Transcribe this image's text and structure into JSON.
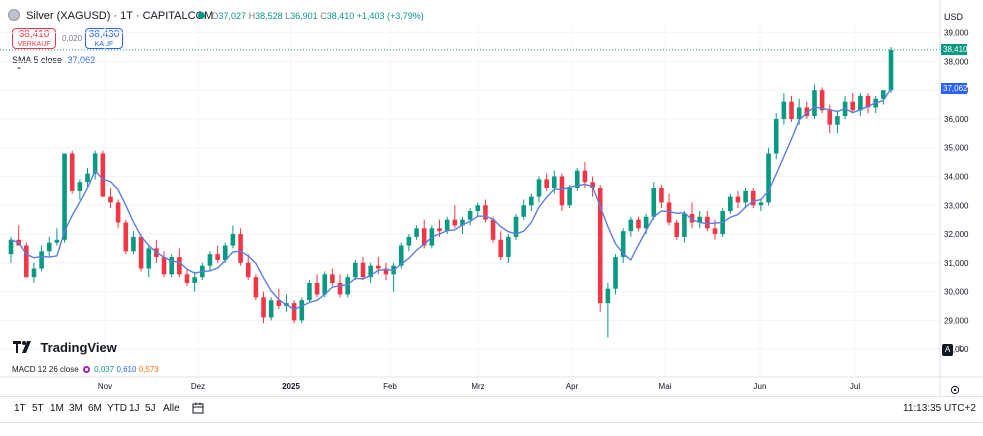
{
  "header": {
    "title": "Silver (XAGUSD) · 1T · CAPITALCOM",
    "ohlc": {
      "o_label": "O",
      "o": "37,027",
      "h_label": "H",
      "h": "38,528",
      "l_label": "L",
      "l": "36,901",
      "c_label": "C",
      "c": "38,410",
      "change": "+1,403 (+3,79%)"
    },
    "sell_price": "38,410",
    "sell_label": "VERKAUF",
    "spread": "0,020",
    "buy_price": "38,430",
    "buy_label": "KAUF",
    "currency": "USD"
  },
  "sma": {
    "label": "SMA 5 close",
    "value": "37,062"
  },
  "macd": {
    "label": "MACD 12 26 close",
    "v1": "0,037",
    "v2": "0,610",
    "v3": "0,573"
  },
  "logo_text": "TradingView",
  "timeframes": [
    "1T",
    "5T",
    "1M",
    "3M",
    "6M",
    "YTD",
    "1J",
    "5J",
    "Alle"
  ],
  "clock": "11:13:35 UTC+2",
  "price_tags": {
    "last": "38,410",
    "sma": "37,062"
  },
  "colors": {
    "up": "#089981",
    "down": "#f23645",
    "sma": "#5b7fe0",
    "accent": "#2962ff"
  },
  "chart_data": {
    "type": "candlestick",
    "y_axis_ticks": [
      "39,000",
      "38,000",
      "37,000",
      "36,000",
      "35,000",
      "34,000",
      "33,000",
      "32,000",
      "31,000",
      "30,000",
      "29,000",
      "28,000"
    ],
    "x_axis_labels": [
      "Nov",
      "Dez",
      "2025",
      "Feb",
      "Mrz",
      "Apr",
      "Mai",
      "Jun",
      "Jul"
    ],
    "ylim": [
      27.9,
      39.3
    ],
    "series": [
      {
        "name": "SMA 5 close"
      }
    ],
    "ohlc": [
      [
        31.3,
        31.9,
        31.0,
        31.8
      ],
      [
        31.8,
        32.3,
        31.6,
        31.6
      ],
      [
        31.6,
        31.7,
        30.5,
        30.5
      ],
      [
        30.5,
        31.0,
        30.3,
        30.8
      ],
      [
        30.8,
        31.6,
        30.7,
        31.4
      ],
      [
        31.4,
        31.9,
        31.2,
        31.7
      ],
      [
        31.7,
        32.2,
        31.6,
        31.8
      ],
      [
        31.8,
        34.8,
        31.7,
        34.8
      ],
      [
        34.8,
        34.9,
        33.4,
        33.5
      ],
      [
        33.5,
        33.9,
        33.2,
        33.8
      ],
      [
        33.8,
        34.3,
        33.6,
        34.1
      ],
      [
        34.1,
        34.9,
        33.9,
        34.8
      ],
      [
        34.8,
        34.9,
        33.3,
        33.3
      ],
      [
        33.3,
        33.6,
        32.9,
        33.1
      ],
      [
        33.1,
        33.2,
        32.2,
        32.4
      ],
      [
        32.4,
        32.5,
        31.3,
        31.4
      ],
      [
        31.4,
        32.1,
        31.3,
        31.9
      ],
      [
        31.9,
        32.0,
        30.7,
        30.8
      ],
      [
        30.8,
        31.6,
        30.5,
        31.5
      ],
      [
        31.5,
        31.8,
        31.0,
        31.2
      ],
      [
        31.2,
        31.4,
        30.5,
        30.6
      ],
      [
        30.6,
        31.3,
        30.5,
        31.2
      ],
      [
        31.2,
        31.5,
        30.5,
        30.6
      ],
      [
        30.6,
        30.8,
        30.2,
        30.3
      ],
      [
        30.3,
        30.7,
        30.0,
        30.5
      ],
      [
        30.5,
        31.0,
        30.4,
        30.9
      ],
      [
        30.9,
        31.4,
        30.7,
        31.3
      ],
      [
        31.3,
        31.6,
        31.0,
        31.1
      ],
      [
        31.1,
        31.7,
        31.0,
        31.6
      ],
      [
        31.6,
        32.3,
        31.5,
        32.0
      ],
      [
        32.0,
        32.2,
        30.9,
        31.0
      ],
      [
        31.0,
        31.3,
        30.4,
        30.5
      ],
      [
        30.5,
        30.6,
        29.7,
        29.8
      ],
      [
        29.8,
        30.0,
        28.9,
        29.1
      ],
      [
        29.1,
        29.8,
        29.0,
        29.7
      ],
      [
        29.7,
        30.1,
        29.4,
        29.5
      ],
      [
        29.5,
        29.9,
        29.3,
        29.6
      ],
      [
        29.6,
        29.7,
        28.9,
        29.0
      ],
      [
        29.0,
        29.8,
        28.9,
        29.7
      ],
      [
        29.7,
        30.4,
        29.6,
        30.3
      ],
      [
        30.3,
        30.6,
        29.8,
        29.9
      ],
      [
        29.9,
        30.7,
        29.8,
        30.6
      ],
      [
        30.6,
        30.8,
        30.2,
        30.3
      ],
      [
        30.3,
        30.6,
        29.8,
        29.9
      ],
      [
        29.9,
        30.6,
        29.8,
        30.5
      ],
      [
        30.5,
        31.1,
        30.4,
        31.0
      ],
      [
        31.0,
        31.2,
        30.4,
        30.5
      ],
      [
        30.5,
        31.0,
        30.3,
        30.9
      ],
      [
        30.9,
        31.2,
        30.6,
        30.8
      ],
      [
        30.8,
        31.0,
        30.4,
        30.6
      ],
      [
        30.6,
        31.0,
        30.0,
        30.9
      ],
      [
        30.9,
        31.7,
        30.8,
        31.6
      ],
      [
        31.6,
        32.0,
        31.4,
        31.9
      ],
      [
        31.9,
        32.3,
        31.8,
        32.2
      ],
      [
        32.2,
        32.5,
        31.5,
        31.6
      ],
      [
        31.6,
        32.3,
        31.5,
        32.2
      ],
      [
        32.2,
        32.5,
        31.9,
        32.1
      ],
      [
        32.1,
        32.6,
        32.0,
        32.5
      ],
      [
        32.5,
        33.0,
        32.2,
        32.3
      ],
      [
        32.3,
        32.6,
        32.0,
        32.5
      ],
      [
        32.5,
        32.9,
        32.3,
        32.8
      ],
      [
        32.8,
        33.1,
        32.6,
        33.0
      ],
      [
        33.0,
        33.2,
        32.4,
        32.5
      ],
      [
        32.5,
        32.6,
        31.7,
        31.8
      ],
      [
        31.8,
        32.1,
        31.1,
        31.2
      ],
      [
        31.2,
        32.0,
        31.0,
        31.9
      ],
      [
        31.9,
        32.7,
        31.8,
        32.6
      ],
      [
        32.6,
        33.2,
        32.5,
        33.0
      ],
      [
        33.0,
        33.4,
        32.8,
        33.3
      ],
      [
        33.3,
        34.0,
        33.1,
        33.9
      ],
      [
        33.9,
        34.1,
        33.5,
        33.6
      ],
      [
        33.6,
        34.2,
        33.4,
        34.0
      ],
      [
        34.0,
        34.1,
        32.8,
        33.0
      ],
      [
        33.0,
        33.7,
        32.9,
        33.6
      ],
      [
        33.6,
        34.3,
        33.5,
        34.2
      ],
      [
        34.2,
        34.5,
        33.6,
        33.8
      ],
      [
        33.8,
        34.0,
        33.3,
        33.6
      ],
      [
        33.6,
        33.7,
        29.3,
        29.6
      ],
      [
        29.6,
        30.3,
        28.4,
        30.1
      ],
      [
        30.1,
        31.3,
        29.9,
        31.2
      ],
      [
        31.2,
        32.2,
        31.0,
        32.1
      ],
      [
        32.1,
        32.6,
        31.9,
        32.5
      ],
      [
        32.5,
        32.6,
        32.1,
        32.2
      ],
      [
        32.2,
        32.7,
        32.0,
        32.6
      ],
      [
        32.6,
        33.8,
        32.5,
        33.6
      ],
      [
        33.6,
        33.7,
        32.9,
        33.1
      ],
      [
        33.1,
        33.4,
        32.3,
        32.4
      ],
      [
        32.4,
        32.5,
        31.8,
        31.9
      ],
      [
        31.9,
        32.8,
        31.7,
        32.7
      ],
      [
        32.7,
        33.1,
        32.2,
        32.4
      ],
      [
        32.4,
        32.8,
        32.2,
        32.6
      ],
      [
        32.6,
        32.8,
        32.1,
        32.2
      ],
      [
        32.2,
        32.5,
        31.8,
        32.0
      ],
      [
        32.0,
        32.9,
        31.9,
        32.8
      ],
      [
        32.8,
        33.4,
        32.7,
        33.3
      ],
      [
        33.3,
        33.5,
        32.9,
        33.1
      ],
      [
        33.1,
        33.6,
        32.9,
        33.5
      ],
      [
        33.5,
        33.6,
        32.9,
        33.0
      ],
      [
        33.0,
        33.2,
        32.8,
        33.1
      ],
      [
        33.1,
        35.0,
        33.0,
        34.8
      ],
      [
        34.8,
        36.2,
        34.6,
        36.0
      ],
      [
        36.0,
        36.9,
        35.8,
        36.6
      ],
      [
        36.6,
        36.8,
        35.9,
        36.0
      ],
      [
        36.0,
        36.7,
        35.8,
        36.4
      ],
      [
        36.4,
        36.6,
        36.0,
        36.1
      ],
      [
        36.1,
        37.2,
        36.0,
        37.0
      ],
      [
        37.0,
        37.1,
        36.2,
        36.3
      ],
      [
        36.3,
        36.5,
        35.5,
        35.8
      ],
      [
        35.8,
        36.3,
        35.5,
        36.1
      ],
      [
        36.1,
        36.8,
        36.0,
        36.6
      ],
      [
        36.6,
        36.9,
        36.2,
        36.3
      ],
      [
        36.3,
        36.9,
        36.1,
        36.8
      ],
      [
        36.8,
        36.9,
        36.2,
        36.4
      ],
      [
        36.4,
        36.8,
        36.2,
        36.7
      ],
      [
        36.7,
        37.0,
        36.5,
        37.0
      ],
      [
        37.0,
        38.5,
        36.9,
        38.4
      ]
    ]
  }
}
